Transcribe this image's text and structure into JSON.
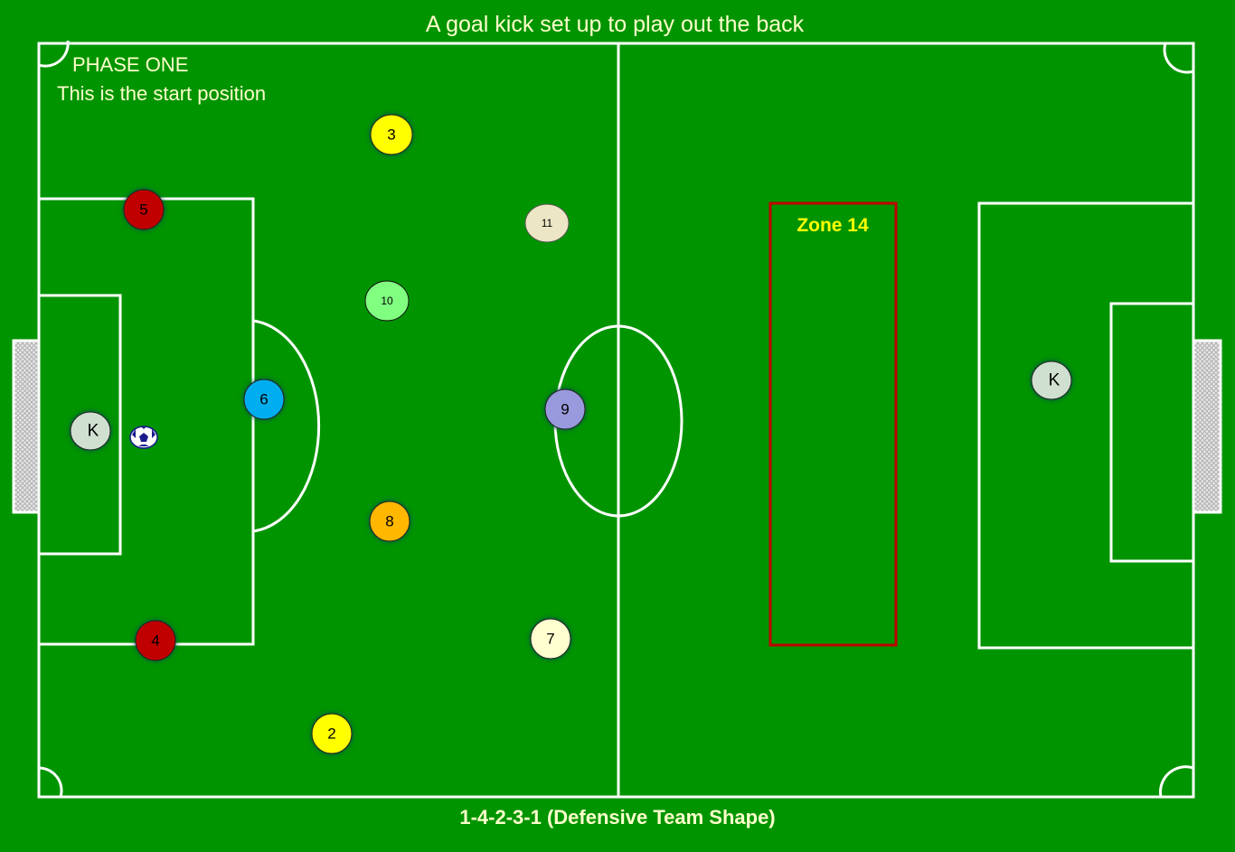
{
  "title": "A goal kick set up to play out the back",
  "phase": "PHASE ONE",
  "phase_note": "This is the start position",
  "formation_caption": "1-4-2-3-1 (Defensive Team Shape)",
  "zone_label": "Zone 14",
  "colors": {
    "pitch": "#009400",
    "lines": "#ffffff",
    "zone": "#c00000",
    "zone_text": "#ffff00",
    "text": "#ffffcc"
  },
  "players": [
    {
      "label": "3",
      "color": "#ffff00"
    },
    {
      "label": "5",
      "color": "#c00000"
    },
    {
      "label": "11",
      "color": "#ede6c4"
    },
    {
      "label": "10",
      "color": "#80ff80"
    },
    {
      "label": "6",
      "color": "#00aeef"
    },
    {
      "label": "K",
      "color": "#d0e0d0"
    },
    {
      "label": "9",
      "color": "#9999dd"
    },
    {
      "label": "8",
      "color": "#ffb700"
    },
    {
      "label": "4",
      "color": "#c00000"
    },
    {
      "label": "7",
      "color": "#ffffd0"
    },
    {
      "label": "2",
      "color": "#ffff00"
    },
    {
      "label": "K",
      "color": "#d0e0d0"
    }
  ],
  "ball_icon": "soccer-ball-icon"
}
